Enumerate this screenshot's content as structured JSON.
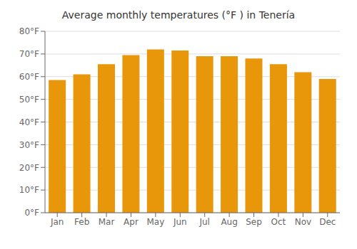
{
  "chart_data": {
    "type": "bar",
    "title": "Average monthly temperatures (°F ) in Tenería",
    "categories": [
      "Jan",
      "Feb",
      "Mar",
      "Apr",
      "May",
      "Jun",
      "Jul",
      "Aug",
      "Sep",
      "Oct",
      "Nov",
      "Dec"
    ],
    "values": [
      58.5,
      61.0,
      65.5,
      69.5,
      72.0,
      71.5,
      69.0,
      69.0,
      68.0,
      65.5,
      62.0,
      59.0
    ],
    "color": "#E8960A",
    "ylim": [
      0,
      80
    ],
    "yticks": [
      {
        "value": 0,
        "label": "0°F"
      },
      {
        "value": 10,
        "label": "10°F"
      },
      {
        "value": 20,
        "label": "20°F"
      },
      {
        "value": 30,
        "label": "30°F"
      },
      {
        "value": 40,
        "label": "40°F"
      },
      {
        "value": 50,
        "label": "50°F"
      },
      {
        "value": 60,
        "label": "60°F"
      },
      {
        "value": 70,
        "label": "70°F"
      },
      {
        "value": 80,
        "label": "80°F"
      }
    ],
    "grid": true
  }
}
